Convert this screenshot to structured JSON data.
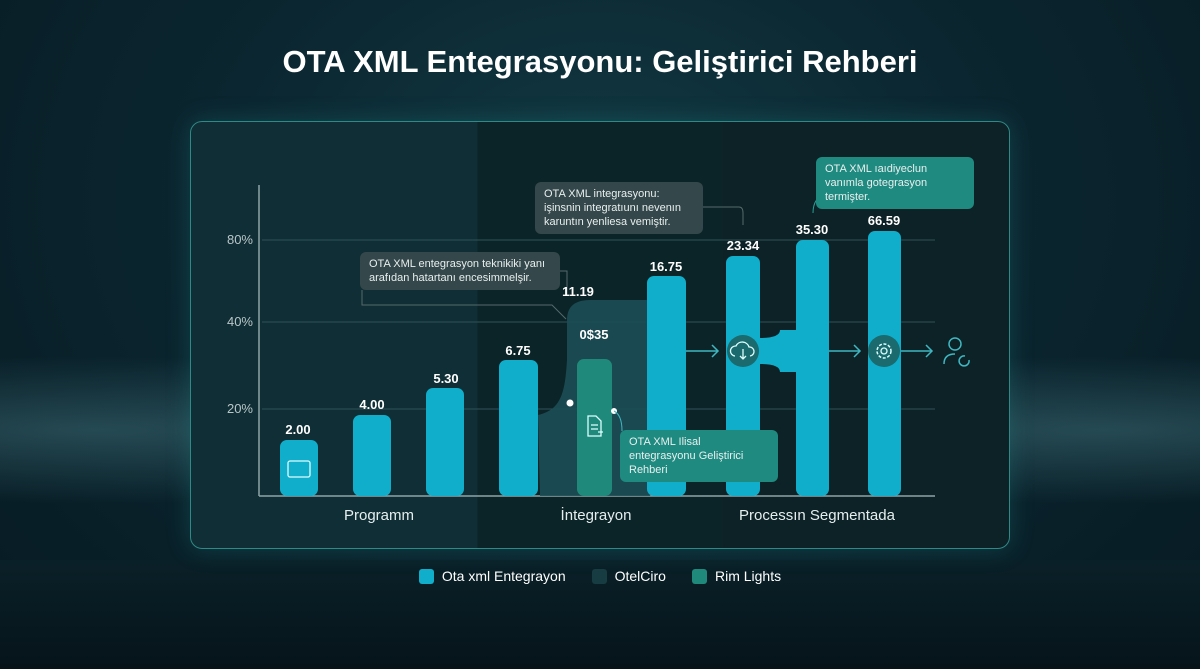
{
  "title": "OTA XML Entegrasyonu: Geliştirici Rehberi",
  "chart_data": {
    "type": "bar",
    "title": "OTA XML Entegrasyonu: Geliştirici Rehberi",
    "yticks": [
      "80%",
      "40%",
      "20%"
    ],
    "categories": [
      "Programm",
      "İntegrayon",
      "Processın Segmentada"
    ],
    "bars": [
      {
        "label": "2.00",
        "value": 2.0,
        "series": "Ota xml Entegrayon"
      },
      {
        "label": "4.00",
        "value": 4.0,
        "series": "Ota xml Entegrayon"
      },
      {
        "label": "5.30",
        "value": 5.3,
        "series": "Ota xml Entegrayon"
      },
      {
        "label": "6.75",
        "value": 6.75,
        "series": "Ota xml Entegrayon"
      },
      {
        "label": "11.19",
        "value": 11.19,
        "series": "OtelCiro"
      },
      {
        "label": "0$35",
        "value": null,
        "series": "Rim Lights"
      },
      {
        "label": "16.75",
        "value": 16.75,
        "series": "Ota xml Entegrayon"
      },
      {
        "label": "23.34",
        "value": 23.34,
        "series": "Ota xml Entegrayon"
      },
      {
        "label": "35.30",
        "value": 35.3,
        "series": "Ota xml Entegrayon"
      },
      {
        "label": "66.59",
        "value": 66.59,
        "series": "Ota xml Entegrayon"
      }
    ],
    "legend": [
      {
        "name": "Ota xml Entegrayon",
        "color": "#10aecb"
      },
      {
        "name": "OtelCiro",
        "color": "#173c42"
      },
      {
        "name": "Rim Lights",
        "color": "#1f8a7c"
      }
    ],
    "legend_placement": "bottom",
    "grid": true,
    "annotations": [
      "OTA XML entegrasyon teknikiki yanı arafıdan hatartanı encesimmelşir.",
      "OTA XML integrasyonu: işinsnin integratıunı nevenın karuntın yenliesa vemiştir.",
      "OTA XML ıaıdiyeclun vanımla gotegrasyon termişter.",
      "OTA XML Ilisal entegrasyonu Geliştirici Rehberi"
    ]
  },
  "icons": [
    "card-icon",
    "document-arrow-icon",
    "cloud-download-icon",
    "gear-icon",
    "user-refresh-icon"
  ]
}
